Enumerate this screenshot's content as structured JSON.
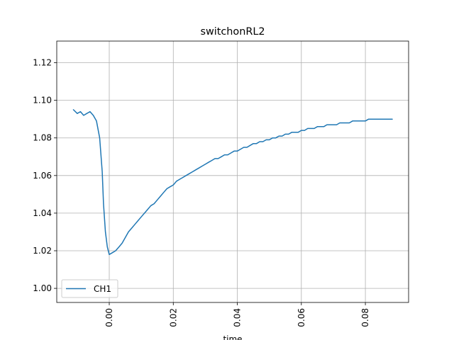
{
  "chart_data": {
    "type": "line",
    "title": "switchonRL2",
    "xlabel": "time",
    "ylabel": "",
    "xlim": [
      -0.0164,
      0.0935
    ],
    "ylim": [
      0.9925,
      1.1315
    ],
    "x_ticks": [
      {
        "value": 0.0,
        "label": "0.00"
      },
      {
        "value": 0.02,
        "label": "0.02"
      },
      {
        "value": 0.04,
        "label": "0.04"
      },
      {
        "value": 0.06,
        "label": "0.06"
      },
      {
        "value": 0.08,
        "label": "0.08"
      }
    ],
    "y_ticks": [
      {
        "value": 1.0,
        "label": "1.00"
      },
      {
        "value": 1.02,
        "label": "1.02"
      },
      {
        "value": 1.04,
        "label": "1.04"
      },
      {
        "value": 1.06,
        "label": "1.06"
      },
      {
        "value": 1.08,
        "label": "1.08"
      },
      {
        "value": 1.1,
        "label": "1.10"
      },
      {
        "value": 1.12,
        "label": "1.12"
      }
    ],
    "grid": true,
    "legend": {
      "placement": "lower-left",
      "entries": [
        "CH1"
      ]
    },
    "series": [
      {
        "name": "CH1",
        "color": "#1f77b4",
        "x": [
          -0.0112,
          -0.01,
          -0.009,
          -0.008,
          -0.007,
          -0.006,
          -0.005,
          -0.004,
          -0.003,
          -0.0022,
          -0.0018,
          -0.0012,
          -0.0006,
          0.0,
          0.001,
          0.002,
          0.003,
          0.004,
          0.005,
          0.006,
          0.007,
          0.008,
          0.009,
          0.01,
          0.011,
          0.012,
          0.013,
          0.014,
          0.015,
          0.016,
          0.017,
          0.018,
          0.019,
          0.02,
          0.021,
          0.022,
          0.023,
          0.024,
          0.025,
          0.026,
          0.027,
          0.028,
          0.029,
          0.03,
          0.031,
          0.032,
          0.033,
          0.034,
          0.035,
          0.036,
          0.037,
          0.038,
          0.039,
          0.04,
          0.041,
          0.042,
          0.043,
          0.044,
          0.045,
          0.046,
          0.047,
          0.048,
          0.049,
          0.05,
          0.051,
          0.052,
          0.053,
          0.054,
          0.055,
          0.056,
          0.057,
          0.058,
          0.059,
          0.06,
          0.061,
          0.062,
          0.063,
          0.064,
          0.065,
          0.066,
          0.067,
          0.068,
          0.069,
          0.07,
          0.071,
          0.072,
          0.073,
          0.074,
          0.075,
          0.076,
          0.077,
          0.078,
          0.079,
          0.08,
          0.081,
          0.082,
          0.083,
          0.084,
          0.085,
          0.086,
          0.087,
          0.0884
        ],
        "y": [
          1.095,
          1.093,
          1.094,
          1.092,
          1.093,
          1.094,
          1.092,
          1.089,
          1.08,
          1.062,
          1.045,
          1.03,
          1.022,
          1.018,
          1.019,
          1.02,
          1.022,
          1.024,
          1.027,
          1.03,
          1.032,
          1.034,
          1.036,
          1.038,
          1.04,
          1.042,
          1.044,
          1.045,
          1.047,
          1.049,
          1.051,
          1.053,
          1.054,
          1.055,
          1.057,
          1.058,
          1.059,
          1.06,
          1.061,
          1.062,
          1.063,
          1.064,
          1.065,
          1.066,
          1.067,
          1.068,
          1.069,
          1.069,
          1.07,
          1.071,
          1.071,
          1.072,
          1.073,
          1.073,
          1.074,
          1.075,
          1.075,
          1.076,
          1.077,
          1.077,
          1.078,
          1.078,
          1.079,
          1.079,
          1.08,
          1.08,
          1.081,
          1.081,
          1.082,
          1.082,
          1.083,
          1.083,
          1.083,
          1.084,
          1.084,
          1.085,
          1.085,
          1.085,
          1.086,
          1.086,
          1.086,
          1.087,
          1.087,
          1.087,
          1.087,
          1.088,
          1.088,
          1.088,
          1.088,
          1.089,
          1.089,
          1.089,
          1.089,
          1.089,
          1.09,
          1.09,
          1.09,
          1.09,
          1.09,
          1.09,
          1.09,
          1.09
        ]
      }
    ]
  }
}
